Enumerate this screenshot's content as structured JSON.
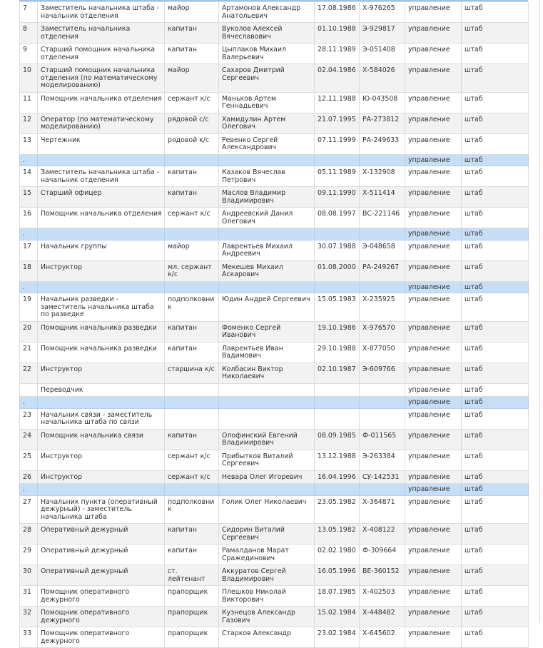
{
  "table": {
    "rows": [
      [
        "7",
        "Заместитель начальника штаба - начальник отделения",
        "майор",
        "Артамонов Александр Анатольевич",
        "17.08.1986",
        "Х-976265",
        "управление",
        "штаб"
      ],
      [
        "8",
        "Заместитель начальника отделения",
        "капитан",
        "Вуколов Алексей Вячеславович",
        "01.10.1988",
        "Э-929817",
        "управление",
        "штаб"
      ],
      [
        "9",
        "Старший помощник начальника отделения",
        "капитан",
        "Цыплаков Михаил Валерьевич",
        "28.11.1989",
        "Э-051408",
        "управление",
        "штаб"
      ],
      [
        "10",
        "Старший помощник начальника отделения (по математическому моделированию)",
        "майор",
        "Сахаров Дмитрий Сергеевич",
        "02.04.1986",
        "Х-584026",
        "управление",
        "штаб"
      ],
      [
        "11",
        "Помощник начальника отделения",
        "сержант к/с",
        "Маньков Артем Геннадьевич",
        "12.11.1988",
        "Ю-043508",
        "управление",
        "штаб"
      ],
      [
        "12",
        "Оператор (по математическому моделированию)",
        "рядовой с/с",
        "Хамидулин Артем Олегович",
        "21.07.1995",
        "РА-273812",
        "управление",
        "штаб"
      ],
      [
        "13",
        "Чертежник",
        "рядовой к/с",
        "Ревенко Сергей Александрович",
        "07.11.1999",
        "РА-249633",
        "управление",
        "штаб"
      ],
      [
        ".",
        null,
        null,
        null,
        null,
        null,
        "управление",
        "штаб"
      ],
      [
        "14",
        "Заместитель начальника штаба - начальник отделения",
        "капитан",
        "Казаков Вячеслав Петрович",
        "05.11.1989",
        "Х-132908",
        "управление",
        "штаб"
      ],
      [
        "15",
        "Старший офицер",
        "капитан",
        "Маслов Владимир Владимирович",
        "09.11.1990",
        "Х-511414",
        "управление",
        "штаб"
      ],
      [
        "16",
        "Помощник начальника отделения",
        "сержант к/с",
        "Андреевский Данил Олегович",
        "08.08.1997",
        "ВС-221146",
        "управление",
        "штаб"
      ],
      [
        ".",
        null,
        null,
        null,
        null,
        null,
        "управление",
        "штаб"
      ],
      [
        "17",
        "Начальник группы",
        "майор",
        "Лаврентьев Михаил Андреевич",
        "30.07.1988",
        "Э-048658",
        "управление",
        "штаб"
      ],
      [
        "18",
        "Инструктор",
        "мл. сержант к/с",
        "Мекешев Михаил Аскарович",
        "01.08.2000",
        "РА-249267",
        "управление",
        "штаб"
      ],
      [
        ".",
        null,
        null,
        null,
        null,
        null,
        "управление",
        "штаб"
      ],
      [
        "19",
        "Начальник разведки - заместитель начальника штаба по разведке",
        "подполковник",
        "Юдин Андрей Сергеевич",
        "15.05.1983",
        "Х-235925",
        "управление",
        "штаб"
      ],
      [
        "20",
        "Помощник начальника разведки",
        "капитан",
        "Фоменко Сергей Иванович",
        "19.10.1986",
        "Х-976570",
        "управление",
        "штаб"
      ],
      [
        "21",
        "Помощник начальника разведки",
        "капитан",
        "Лаврентьев Иван Вадимович",
        "29.10.1988",
        "Х-877050",
        "управление",
        "штаб"
      ],
      [
        "22",
        "Инструктор",
        "старшина к/с",
        "Колбасин Виктор Николаевич",
        "02.10.1987",
        "Э-609766",
        "управление",
        "штаб"
      ],
      [
        null,
        "Переводчик",
        null,
        null,
        null,
        null,
        "управление",
        "штаб"
      ],
      [
        ".",
        null,
        null,
        null,
        null,
        null,
        "управление",
        "штаб"
      ],
      [
        "23",
        "Начальник связи - заместитель начальника штаба по связи",
        null,
        null,
        null,
        null,
        "управление",
        "штаб"
      ],
      [
        "24",
        "Помощник начальника связи",
        "капитан",
        "Олофинский Евгений Владимирович",
        "08.09.1985",
        "Ф-011565",
        "управление",
        "штаб"
      ],
      [
        "25",
        "Инструктор",
        "сержант к/с",
        "Прибытков Виталий Сергеевич",
        "13.12.1988",
        "Э-263384",
        "управление",
        "штаб"
      ],
      [
        "26",
        "Инструктор",
        "сержант к/с",
        "Невара Олег Игоревич",
        "16.04.1996",
        "СУ-142531",
        "управление",
        "штаб"
      ],
      [
        ".",
        null,
        null,
        null,
        null,
        null,
        "управление",
        "штаб"
      ],
      [
        "27",
        "Начальник пункта (оперативный дежурный) - заместитель начальника штаба",
        "подполковник",
        "Голик Олег Николаевич",
        "23.05.1982",
        "Х-364871",
        "управление",
        "штаб"
      ],
      [
        "28",
        "Оперативный дежурный",
        "капитан",
        "Сидорин Виталий Сергеевич",
        "13.05.1982",
        "Х-408122",
        "управление",
        "штаб"
      ],
      [
        "29",
        "Оперативный дежурный",
        "капитан",
        "Рамалданов Марат Сражединович",
        "02.02.1980",
        "Ф-309664",
        "управление",
        "штаб"
      ],
      [
        "30",
        "Оперативный дежурный",
        "ст. лейтенант",
        "Аккуратов Сергей Владимирович",
        "16.05.1996",
        "ВЕ-360152",
        "управление",
        "штаб"
      ],
      [
        "31",
        "Помощник оперативного дежурного",
        "прапорщик",
        "Плешков Николай Викторович",
        "18.07.1985",
        "Х-402503",
        "управление",
        "штаб"
      ],
      [
        "32",
        "Помощник оперативного дежурного",
        "прапорщик",
        "Кузнецов Александр Газович",
        "15.02.1984",
        "Х-448482",
        "управление",
        "штаб"
      ],
      [
        "33",
        "Помощник оперативного дежурного",
        "прапорщик",
        "Старков Александр",
        "23.02.1984",
        "Х-645602",
        "управление",
        "штаб"
      ]
    ]
  }
}
